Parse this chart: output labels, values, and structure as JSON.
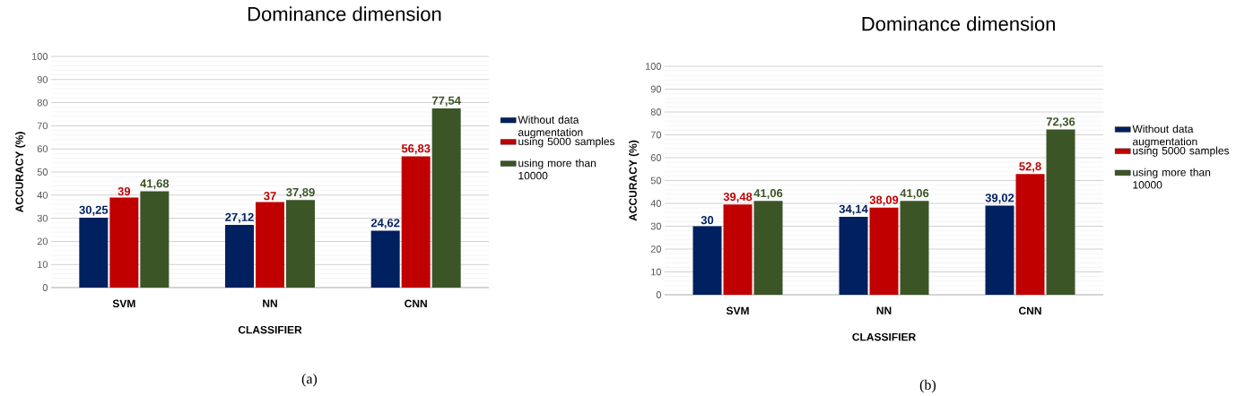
{
  "chart_data": [
    {
      "type": "bar",
      "title": "Dominance dimension",
      "xlabel": "CLASSIFIER",
      "ylabel": "ACCURACY (%)",
      "categories": [
        "SVM",
        "NN",
        "CNN"
      ],
      "series": [
        {
          "name": "Without data augmentation",
          "color": "#002060",
          "values": [
            30.25,
            27.12,
            24.62
          ],
          "value_labels": [
            "30,25",
            "27,12",
            "24,62"
          ]
        },
        {
          "name": "using 5000 samples",
          "color": "#c00000",
          "values": [
            39,
            37,
            56.83
          ],
          "value_labels": [
            "39",
            "37",
            "56,83"
          ]
        },
        {
          "name": "using more than 10000",
          "color": "#3b5526",
          "values": [
            41.68,
            37.89,
            77.54
          ],
          "value_labels": [
            "41,68",
            "37,89",
            "77,54"
          ]
        }
      ],
      "ylim": [
        0,
        100
      ],
      "yticks": [
        0,
        10,
        20,
        30,
        40,
        50,
        60,
        70,
        80,
        90,
        100
      ],
      "grid": "y",
      "legend": "right",
      "annotations": [
        "(a)"
      ]
    },
    {
      "type": "bar",
      "title": "Dominance dimension",
      "xlabel": "CLASSIFIER",
      "ylabel": "ACCURACY (%)",
      "categories": [
        "SVM",
        "NN",
        "CNN"
      ],
      "series": [
        {
          "name": "Without data augmentation",
          "color": "#002060",
          "values": [
            30,
            34.14,
            39.02
          ],
          "value_labels": [
            "30",
            "34,14",
            "39,02"
          ]
        },
        {
          "name": "using 5000 samples",
          "color": "#c00000",
          "values": [
            39.48,
            38.09,
            52.8
          ],
          "value_labels": [
            "39,48",
            "38,09",
            "52,8"
          ]
        },
        {
          "name": "using more than 10000",
          "color": "#3b5526",
          "values": [
            41.06,
            41.06,
            72.36
          ],
          "value_labels": [
            "41,06",
            "41,06",
            "72,36"
          ]
        }
      ],
      "ylim": [
        0,
        100
      ],
      "yticks": [
        0,
        10,
        20,
        30,
        40,
        50,
        60,
        70,
        80,
        90,
        100
      ],
      "grid": "y",
      "legend": "right",
      "annotations": [
        "(b)"
      ]
    }
  ]
}
